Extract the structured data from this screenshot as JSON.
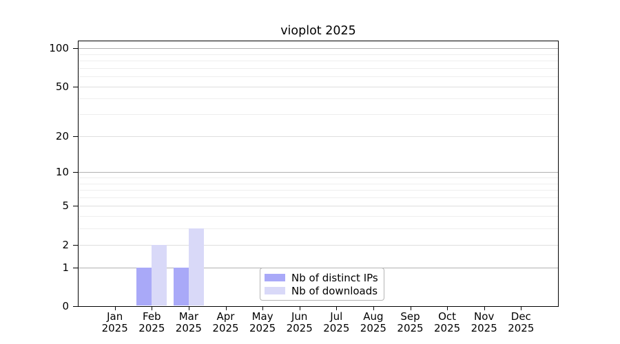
{
  "chart_data": {
    "type": "bar",
    "title": "vioplot 2025",
    "x": [
      "Jan 2025",
      "Feb 2025",
      "Mar 2025",
      "Apr 2025",
      "May 2025",
      "Jun 2025",
      "Jul 2025",
      "Aug 2025",
      "Sep 2025",
      "Oct 2025",
      "Nov 2025",
      "Dec 2025"
    ],
    "x_tick_line1": [
      "Jan",
      "Feb",
      "Mar",
      "Apr",
      "May",
      "Jun",
      "Jul",
      "Aug",
      "Sep",
      "Oct",
      "Nov",
      "Dec"
    ],
    "x_tick_line2": [
      "2025",
      "2025",
      "2025",
      "2025",
      "2025",
      "2025",
      "2025",
      "2025",
      "2025",
      "2025",
      "2025",
      "2025"
    ],
    "series": [
      {
        "name": "Nb of distinct IPs",
        "color": "#a9a9f8",
        "values": [
          0,
          1,
          1,
          0,
          0,
          0,
          0,
          0,
          0,
          0,
          0,
          0
        ]
      },
      {
        "name": "Nb of downloads",
        "color": "#d9d9f8",
        "values": [
          0,
          2,
          3,
          0,
          0,
          0,
          0,
          0,
          0,
          0,
          0,
          0
        ]
      }
    ],
    "y_axis": {
      "scale": "log1p",
      "tick_labels": [
        "0",
        "1",
        "2",
        "5",
        "10",
        "20",
        "50",
        "100"
      ],
      "tick_values": [
        0,
        1,
        2,
        5,
        10,
        20,
        50,
        100
      ],
      "range_top": 110
    },
    "gridlines": {
      "decade": [
        1,
        10,
        100
      ],
      "labeled": [
        2,
        5,
        20,
        50
      ],
      "minor": [
        3,
        4,
        6,
        7,
        8,
        9,
        30,
        40,
        60,
        70,
        80,
        90
      ]
    },
    "legend": {
      "position": "lower-center",
      "entries": [
        "Nb of distinct IPs",
        "Nb of downloads"
      ]
    }
  }
}
